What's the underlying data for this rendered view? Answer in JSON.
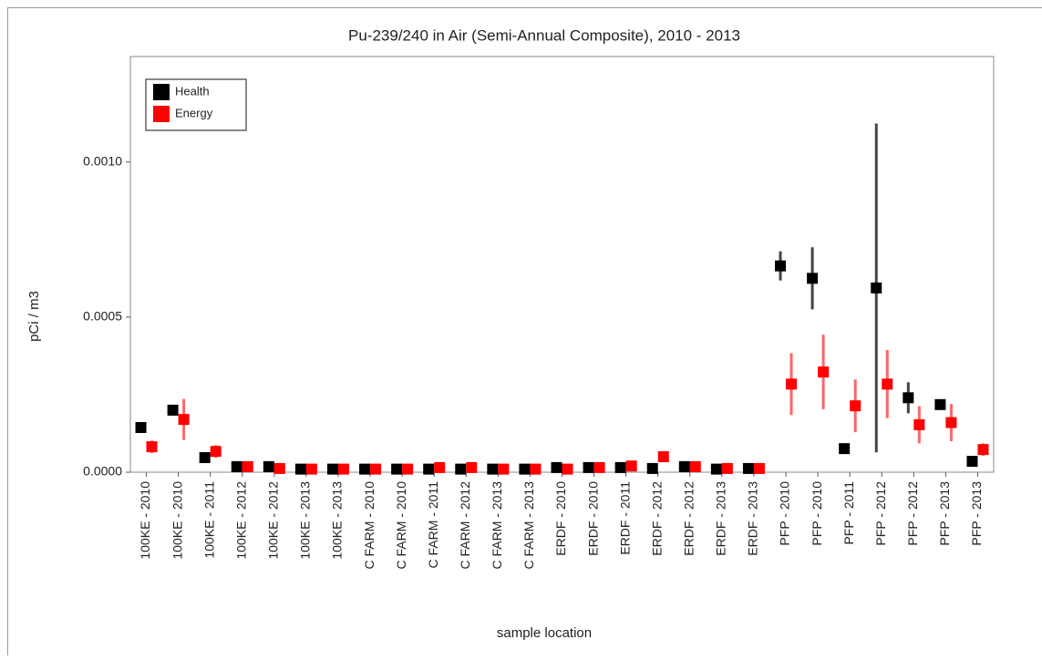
{
  "chart_data": {
    "type": "scatter",
    "title": "Pu-239/240 in Air (Semi-Annual Composite), 2010 - 2013",
    "x_label": "sample location",
    "y_label": "pCi / m3",
    "categories": [
      "100KE - 2010",
      "100KE - 2010",
      "100KE - 2011",
      "100KE - 2012",
      "100KE - 2012",
      "100KE - 2013",
      "100KE - 2013",
      "C FARM - 2010",
      "C FARM - 2010",
      "C FARM - 2011",
      "C FARM - 2012",
      "C FARM - 2013",
      "C FARM - 2013",
      "ERDF - 2010",
      "ERDF - 2010",
      "ERDF - 2011",
      "ERDF - 2012",
      "ERDF - 2012",
      "ERDF - 2013",
      "ERDF - 2013",
      "PFP - 2010",
      "PFP - 2010",
      "PFP - 2011",
      "PFP - 2012",
      "PFP - 2012",
      "PFP - 2013",
      "PFP - 2013"
    ],
    "series": [
      {
        "name": "Health",
        "color": "#000000",
        "error_color": "#444444",
        "values": [
          0.000144,
          0.0002,
          4.7e-05,
          1.8e-05,
          1.8e-05,
          1e-05,
          1e-05,
          1e-05,
          1e-05,
          1e-05,
          1e-05,
          1e-05,
          1e-05,
          1.5e-05,
          1.5e-05,
          1.5e-05,
          1.2e-05,
          1.8e-05,
          1e-05,
          1.2e-05,
          0.000665,
          0.000625,
          7.6e-05,
          0.000594,
          0.00024,
          0.000218,
          3.5e-05
        ],
        "errors": [
          null,
          null,
          null,
          null,
          null,
          null,
          null,
          null,
          null,
          null,
          null,
          null,
          null,
          null,
          null,
          null,
          null,
          null,
          null,
          null,
          4.7e-05,
          0.0001,
          null,
          0.00053,
          5e-05,
          1e-05,
          null
        ]
      },
      {
        "name": "Energy",
        "color": "#ff0000",
        "error_color": "#ff6666",
        "values": [
          8.2e-05,
          0.00017,
          6.7e-05,
          1.8e-05,
          1.2e-05,
          1e-05,
          1e-05,
          1e-05,
          1e-05,
          1.5e-05,
          1.5e-05,
          1e-05,
          1e-05,
          1e-05,
          1.5e-05,
          2e-05,
          5e-05,
          1.8e-05,
          1.2e-05,
          1.2e-05,
          0.000284,
          0.000323,
          0.000214,
          0.000284,
          0.000153,
          0.00016,
          7.3e-05
        ],
        "errors": [
          2e-05,
          6.6e-05,
          2e-05,
          null,
          null,
          null,
          null,
          null,
          null,
          null,
          null,
          null,
          null,
          null,
          null,
          null,
          1e-05,
          null,
          null,
          null,
          0.0001,
          0.00012,
          8.5e-05,
          0.00011,
          6e-05,
          6e-05,
          2e-05
        ]
      }
    ],
    "ylim": [
      0,
      0.00134
    ],
    "yticks": [
      {
        "value": 0,
        "label": "0.0000"
      },
      {
        "value": 0.0005,
        "label": "0.0005"
      },
      {
        "value": 0.001,
        "label": "0.0010"
      }
    ],
    "legend": "upper left"
  }
}
